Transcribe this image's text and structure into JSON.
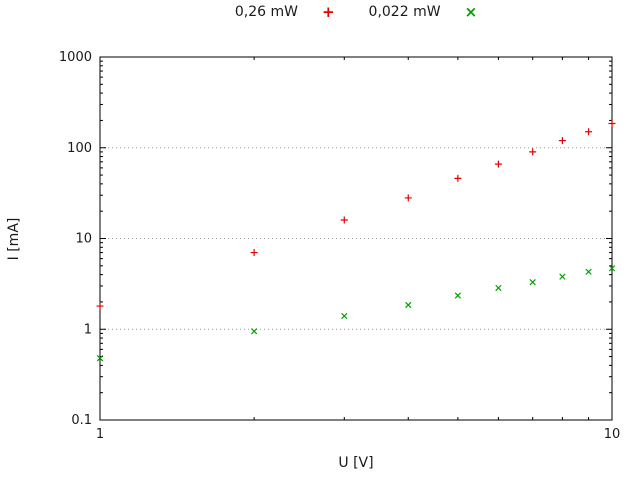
{
  "chart_data": {
    "type": "scatter",
    "title": "",
    "xlabel": "U [V]",
    "ylabel": "I [mA]",
    "x_scale": "log",
    "y_scale": "log",
    "xlim": [
      1,
      10
    ],
    "ylim": [
      0.1,
      1000
    ],
    "x_ticks": {
      "values": [
        1,
        10
      ],
      "labels": [
        "1",
        "10"
      ]
    },
    "y_ticks": {
      "values": [
        0.1,
        1,
        10,
        100,
        1000
      ],
      "labels": [
        "0.1",
        "1",
        "10",
        "100",
        "1000"
      ]
    },
    "grid_y": [
      1,
      10,
      100
    ],
    "minor_ticks": true,
    "grid_color": "#9a9a9a",
    "axis_color": "#000000",
    "legend_position": "top-center",
    "series": [
      {
        "name": "0,26 mW",
        "marker": "plus",
        "color": "#e60000",
        "x": [
          1,
          2,
          3,
          4,
          5,
          6,
          7,
          8,
          9,
          10
        ],
        "y": [
          1.8,
          7,
          16,
          28,
          46,
          66,
          90,
          120,
          150,
          185
        ]
      },
      {
        "name": "0,022 mW",
        "marker": "cross",
        "color": "#00a000",
        "x": [
          1,
          2,
          3,
          4,
          5,
          6,
          7,
          8,
          9,
          10
        ],
        "y": [
          0.48,
          0.95,
          1.4,
          1.85,
          2.35,
          2.85,
          3.3,
          3.8,
          4.3,
          4.7
        ]
      }
    ]
  }
}
